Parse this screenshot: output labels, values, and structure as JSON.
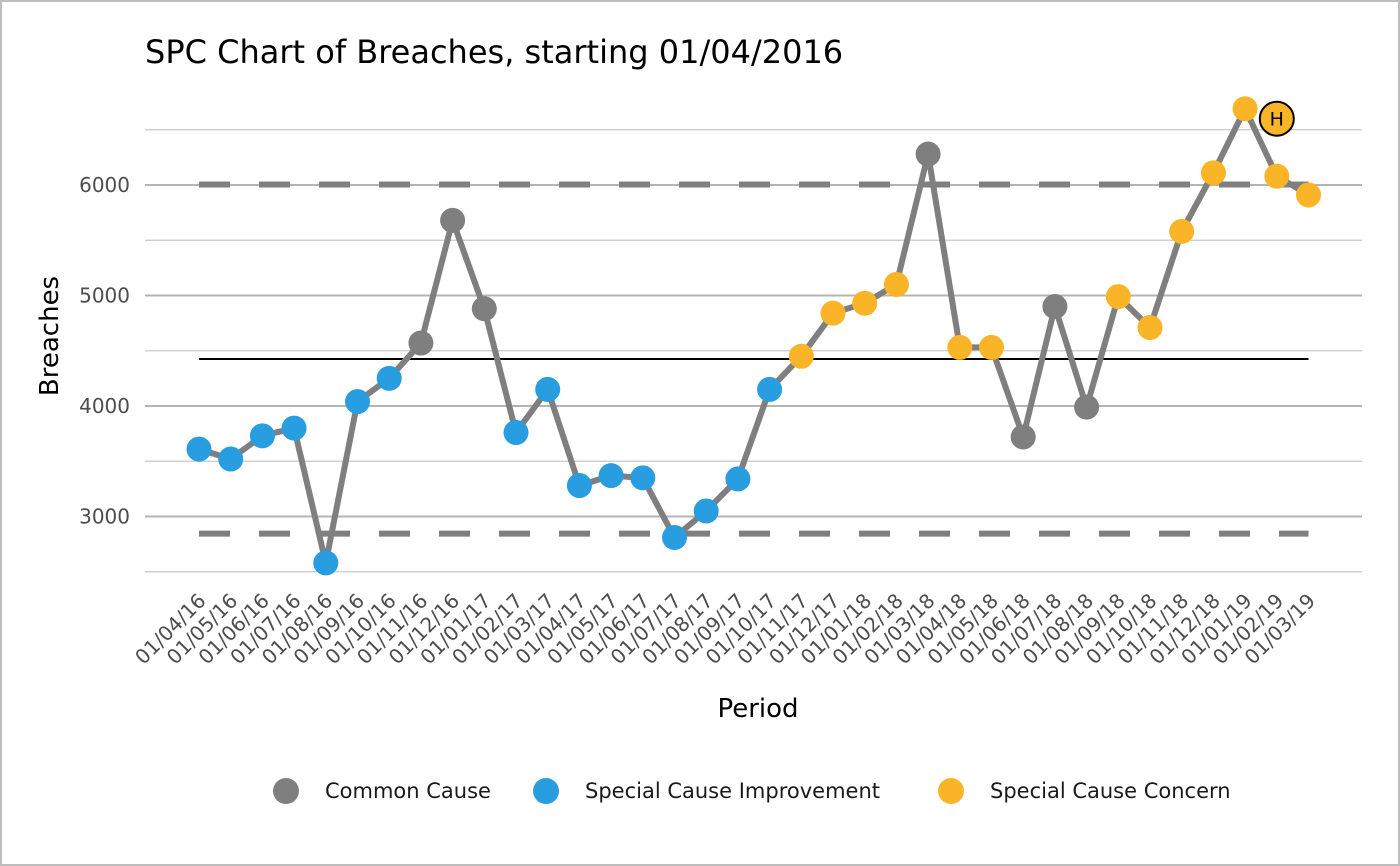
{
  "chart_data": {
    "type": "line",
    "title": "SPC Chart of Breaches, starting 01/04/2016",
    "xlabel": "Period",
    "ylabel": "Breaches",
    "ylim": [
      2500,
      6700
    ],
    "yticks": [
      3000,
      4000,
      5000,
      6000
    ],
    "grid": true,
    "legend_position": "bottom",
    "categories": [
      "01/04/16",
      "01/05/16",
      "01/06/16",
      "01/07/16",
      "01/08/16",
      "01/09/16",
      "01/10/16",
      "01/11/16",
      "01/12/16",
      "01/01/17",
      "01/02/17",
      "01/03/17",
      "01/04/17",
      "01/05/17",
      "01/06/17",
      "01/07/17",
      "01/08/17",
      "01/09/17",
      "01/10/17",
      "01/11/17",
      "01/12/17",
      "01/01/18",
      "01/02/18",
      "01/03/18",
      "01/04/18",
      "01/05/18",
      "01/06/18",
      "01/07/18",
      "01/08/18",
      "01/09/18",
      "01/10/18",
      "01/11/18",
      "01/12/18",
      "01/01/19",
      "01/02/19",
      "01/03/19"
    ],
    "values": [
      3610,
      3520,
      3730,
      3800,
      2580,
      4040,
      4250,
      4570,
      5680,
      4880,
      3760,
      4150,
      3280,
      3370,
      3350,
      2810,
      3050,
      3340,
      4150,
      4450,
      4840,
      4930,
      5100,
      6280,
      4530,
      4530,
      3720,
      4900,
      3990,
      4990,
      4710,
      5580,
      6110,
      6690,
      6080,
      5910
    ],
    "point_status": [
      "improvement",
      "improvement",
      "improvement",
      "improvement",
      "improvement",
      "improvement",
      "improvement",
      "common",
      "common",
      "common",
      "improvement",
      "improvement",
      "improvement",
      "improvement",
      "improvement",
      "improvement",
      "improvement",
      "improvement",
      "improvement",
      "concern",
      "concern",
      "concern",
      "concern",
      "common",
      "concern",
      "concern",
      "common",
      "common",
      "common",
      "concern",
      "concern",
      "concern",
      "concern",
      "concern",
      "concern",
      "concern"
    ],
    "mean": 4425,
    "upper_control_limit": 6005,
    "lower_control_limit": 2845,
    "annotation": {
      "label": "H",
      "x_index": 34,
      "y": 6600
    },
    "legend": [
      {
        "key": "common",
        "name": "Common Cause",
        "color": "#7f7f7f"
      },
      {
        "key": "improvement",
        "name": "Special Cause Improvement",
        "color": "#289de0"
      },
      {
        "key": "concern",
        "name": "Special Cause Concern",
        "color": "#fab428"
      }
    ],
    "line_color": "#7f7f7f",
    "mean_color": "#000000",
    "limit_color": "#7f7f7f"
  }
}
